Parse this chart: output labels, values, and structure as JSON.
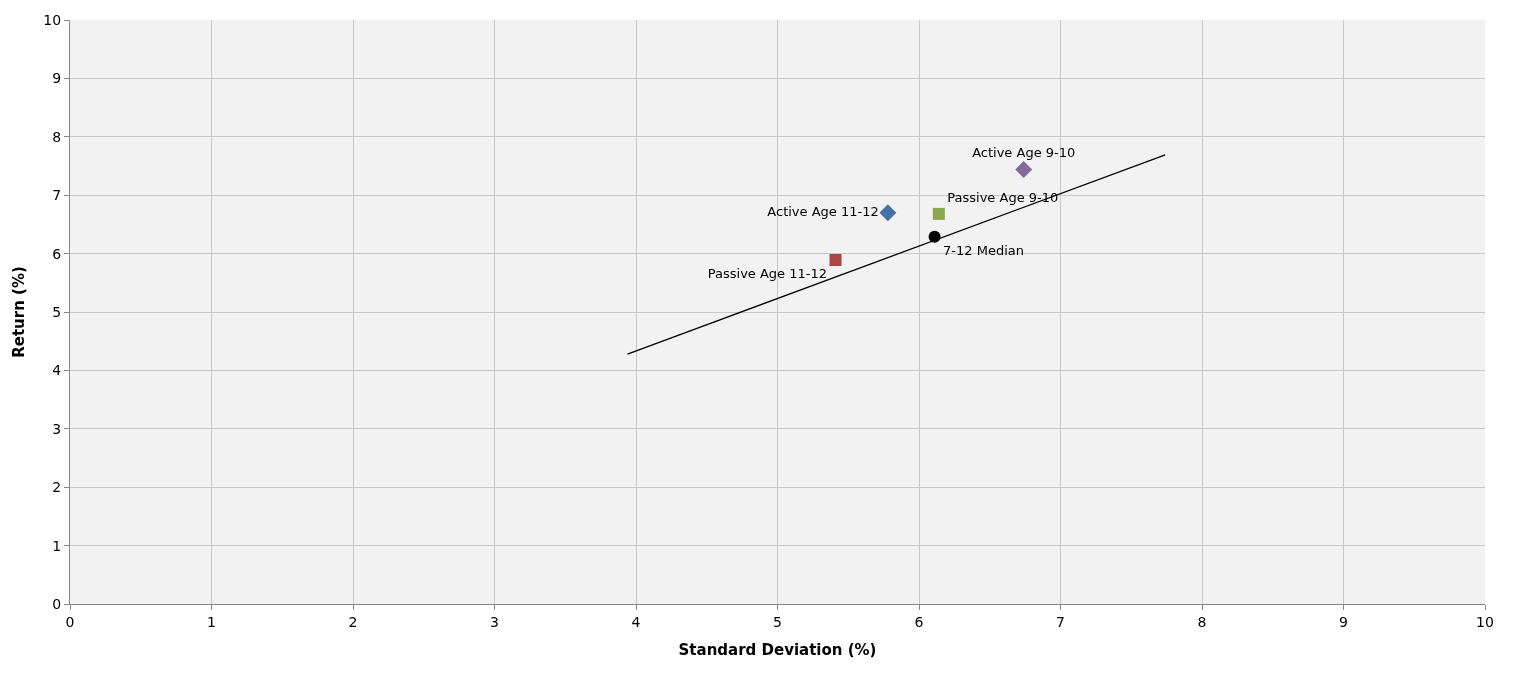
{
  "chart_data": {
    "type": "scatter",
    "xlabel": "Standard Deviation (%)",
    "ylabel": "Return (%)",
    "xlim": [
      0,
      10
    ],
    "xticks": [
      0,
      1,
      2,
      3,
      4,
      5,
      6,
      7,
      8,
      9,
      10
    ],
    "ylim": [
      0,
      10
    ],
    "yticks": [
      0,
      1,
      2,
      3,
      4,
      5,
      6,
      7,
      8,
      9,
      10
    ],
    "grid": true,
    "legend": false,
    "series": [
      {
        "name": "Active Age 11-12",
        "color": "#4572a7",
        "marker": "diamond",
        "x": [
          5.78
        ],
        "values": [
          6.7
        ]
      },
      {
        "name": "Passive Age 11-12",
        "color": "#aa4643",
        "marker": "square",
        "x": [
          5.41
        ],
        "values": [
          5.89
        ]
      },
      {
        "name": "Passive Age 9-10",
        "color": "#89a54e",
        "marker": "square",
        "x": [
          6.14
        ],
        "values": [
          6.68
        ]
      },
      {
        "name": "Active Age 9-10",
        "color": "#80699b",
        "marker": "diamond",
        "x": [
          6.74
        ],
        "values": [
          7.44
        ]
      },
      {
        "name": "7-12 Median",
        "color": "#000000",
        "marker": "circle",
        "x": [
          6.11
        ],
        "values": [
          6.29
        ]
      },
      {
        "type": "line",
        "color": "#000000",
        "marker": "none",
        "x": [
          3.94,
          7.74
        ],
        "values": [
          4.28,
          7.69
        ]
      }
    ]
  }
}
